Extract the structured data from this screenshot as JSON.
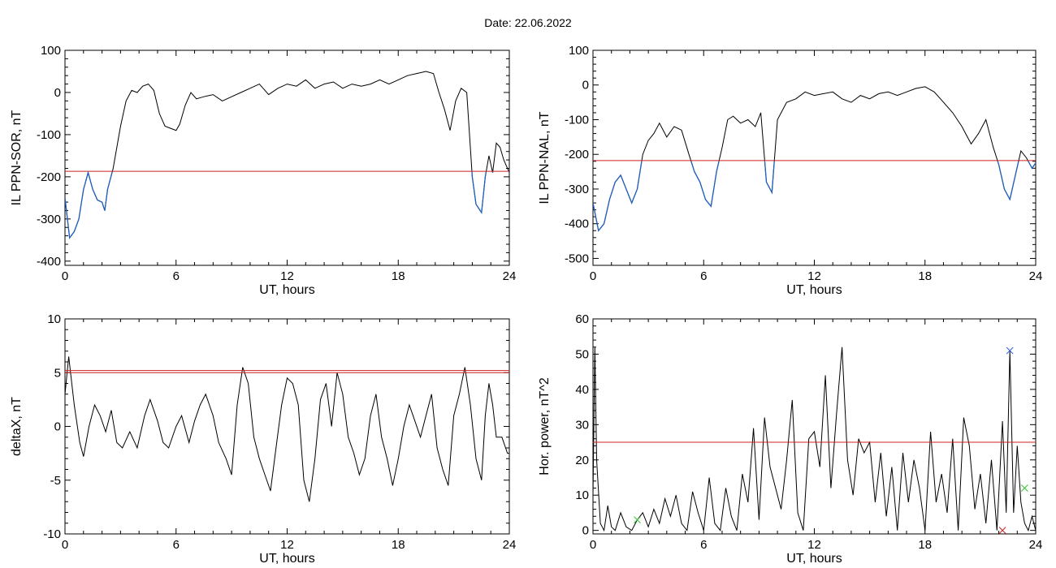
{
  "header": {
    "date_label": "Date:  22.06.2022"
  },
  "chart_data": [
    {
      "type": "line",
      "xlabel": "UT, hours",
      "ylabel": "IL PPN-SOR, nT",
      "xlim": [
        0,
        24
      ],
      "ylim": [
        -410,
        100
      ],
      "xticks": [
        0,
        6,
        12,
        18,
        24
      ],
      "yticks": [
        -400,
        -300,
        -200,
        -100,
        0,
        100
      ],
      "threshold": -187,
      "below_color": "#1f5fbf",
      "line_color": "#000000",
      "threshold_color": "#cc2020",
      "series": [
        {
          "x": [
            0,
            0.25,
            0.5,
            0.75,
            1.0,
            1.25,
            1.5,
            1.75,
            2.0,
            2.15,
            2.3,
            2.6,
            3.0,
            3.3,
            3.6,
            3.9,
            4.2,
            4.5,
            4.8,
            5.1,
            5.4,
            5.7,
            6.0,
            6.2,
            6.5,
            6.8,
            7.1,
            7.5,
            8.0,
            8.5,
            9.0,
            9.5,
            10.0,
            10.5,
            11.0,
            11.5,
            12.0,
            12.5,
            13.0,
            13.5,
            14.0,
            14.5,
            15.0,
            15.5,
            16.0,
            16.5,
            17.0,
            17.5,
            18.0,
            18.5,
            19.0,
            19.5,
            19.9,
            20.2,
            20.5,
            20.8,
            21.1,
            21.4,
            21.7,
            22.0,
            22.2,
            22.5,
            22.7,
            22.9,
            23.1,
            23.3,
            23.5,
            23.7,
            24.0
          ],
          "y": [
            -250,
            -345,
            -330,
            -300,
            -230,
            -190,
            -230,
            -255,
            -260,
            -280,
            -230,
            -180,
            -80,
            -20,
            5,
            0,
            15,
            20,
            5,
            -50,
            -80,
            -85,
            -90,
            -75,
            -30,
            0,
            -15,
            -10,
            -5,
            -20,
            -10,
            0,
            10,
            20,
            -5,
            10,
            20,
            15,
            30,
            10,
            20,
            25,
            10,
            20,
            15,
            20,
            30,
            20,
            30,
            40,
            45,
            50,
            45,
            0,
            -40,
            -90,
            -20,
            10,
            0,
            -200,
            -265,
            -285,
            -200,
            -150,
            -190,
            -120,
            -130,
            -160,
            -190
          ]
        }
      ]
    },
    {
      "type": "line",
      "xlabel": "UT, hours",
      "ylabel": "IL PPN-NAL, nT",
      "xlim": [
        0,
        24
      ],
      "ylim": [
        -520,
        100
      ],
      "xticks": [
        0,
        6,
        12,
        18,
        24
      ],
      "yticks": [
        -500,
        -400,
        -300,
        -200,
        -100,
        0,
        100
      ],
      "threshold": -218,
      "below_color": "#1f5fbf",
      "line_color": "#000000",
      "threshold_color": "#cc2020",
      "series": [
        {
          "x": [
            0,
            0.3,
            0.6,
            0.9,
            1.2,
            1.5,
            1.8,
            2.1,
            2.4,
            2.7,
            3.0,
            3.3,
            3.6,
            4.0,
            4.4,
            4.8,
            5.2,
            5.5,
            5.8,
            6.1,
            6.4,
            6.7,
            7.0,
            7.3,
            7.6,
            8.0,
            8.4,
            8.8,
            9.1,
            9.4,
            9.7,
            10.0,
            10.5,
            11.0,
            11.5,
            12.0,
            12.5,
            13.0,
            13.5,
            14.0,
            14.5,
            15.0,
            15.5,
            16.0,
            16.5,
            17.0,
            17.5,
            18.0,
            18.5,
            19.0,
            19.5,
            20.0,
            20.5,
            20.9,
            21.3,
            21.7,
            22.0,
            22.3,
            22.6,
            22.9,
            23.2,
            23.5,
            23.8,
            24.0
          ],
          "y": [
            -340,
            -420,
            -400,
            -330,
            -280,
            -260,
            -300,
            -340,
            -300,
            -200,
            -160,
            -140,
            -110,
            -150,
            -120,
            -130,
            -200,
            -250,
            -280,
            -330,
            -350,
            -250,
            -180,
            -100,
            -90,
            -110,
            -100,
            -120,
            -80,
            -280,
            -310,
            -100,
            -50,
            -40,
            -20,
            -30,
            -25,
            -20,
            -40,
            -50,
            -30,
            -40,
            -25,
            -20,
            -30,
            -20,
            -10,
            -5,
            -20,
            -50,
            -80,
            -120,
            -170,
            -140,
            -100,
            -180,
            -230,
            -300,
            -330,
            -260,
            -190,
            -210,
            -240,
            -225
          ]
        }
      ]
    },
    {
      "type": "line",
      "xlabel": "UT, hours",
      "ylabel": "deltaX, nT",
      "xlim": [
        0,
        24
      ],
      "ylim": [
        -10,
        10
      ],
      "xticks": [
        0,
        6,
        12,
        18,
        24
      ],
      "yticks": [
        -10,
        -5,
        0,
        5,
        10
      ],
      "thresholds": [
        5.2,
        5.0
      ],
      "line_color": "#000000",
      "threshold_color": "#cc2020",
      "series": [
        {
          "x": [
            0,
            0.2,
            0.5,
            0.8,
            1.0,
            1.3,
            1.6,
            1.9,
            2.2,
            2.5,
            2.8,
            3.1,
            3.5,
            3.9,
            4.3,
            4.6,
            5.0,
            5.3,
            5.6,
            6.0,
            6.3,
            6.7,
            7.0,
            7.3,
            7.6,
            8.0,
            8.3,
            8.7,
            9.0,
            9.3,
            9.6,
            9.9,
            10.2,
            10.5,
            10.8,
            11.1,
            11.4,
            11.7,
            12.0,
            12.3,
            12.6,
            12.9,
            13.2,
            13.5,
            13.8,
            14.1,
            14.4,
            14.7,
            15.0,
            15.3,
            15.6,
            15.9,
            16.2,
            16.5,
            16.8,
            17.1,
            17.4,
            17.7,
            18.0,
            18.3,
            18.6,
            18.9,
            19.2,
            19.5,
            19.8,
            20.1,
            20.4,
            20.7,
            21.0,
            21.3,
            21.6,
            21.9,
            22.2,
            22.5,
            22.7,
            22.9,
            23.1,
            23.3,
            23.6,
            23.9,
            24.0
          ],
          "y": [
            3,
            6.5,
            2,
            -1.5,
            -2.8,
            0,
            2,
            1,
            -0.5,
            1.5,
            -1.5,
            -2,
            -0.5,
            -2,
            1,
            2.5,
            0.5,
            -1.5,
            -2,
            0,
            1,
            -1.5,
            0.5,
            2,
            3,
            1,
            -1.5,
            -3,
            -4.5,
            2,
            5.5,
            4,
            -1,
            -3,
            -4.5,
            -6,
            -2,
            2,
            4.5,
            4,
            2,
            -5,
            -7,
            -3,
            2.5,
            4,
            0,
            5,
            3,
            -1,
            -2.5,
            -4.5,
            -3,
            1,
            3,
            -1,
            -3,
            -5.5,
            -3,
            0,
            2,
            0.5,
            -1,
            1,
            3,
            -2,
            -4,
            -5.5,
            1,
            3,
            5.5,
            2,
            -3,
            -5,
            1,
            4,
            2,
            -1,
            -1,
            -2.5,
            -2.5
          ]
        }
      ]
    },
    {
      "type": "line",
      "xlabel": "UT, hours",
      "ylabel": "Hor. power, nT^2",
      "xlim": [
        0,
        24
      ],
      "ylim": [
        -1,
        60
      ],
      "xticks": [
        0,
        6,
        12,
        18,
        24
      ],
      "yticks": [
        0,
        10,
        20,
        30,
        40,
        50,
        60
      ],
      "threshold": 25,
      "line_color": "#000000",
      "threshold_color": "#cc2020",
      "markers": [
        {
          "x": 2.4,
          "y": 3,
          "color": "#30c030",
          "symbol": "×"
        },
        {
          "x": 22.6,
          "y": 51,
          "color": "#3060d0",
          "symbol": "×"
        },
        {
          "x": 23.4,
          "y": 12,
          "color": "#30c030",
          "symbol": "×"
        },
        {
          "x": 22.2,
          "y": 0,
          "color": "#cc2020",
          "symbol": "×"
        }
      ],
      "series": [
        {
          "x": [
            0,
            0.1,
            0.2,
            0.4,
            0.6,
            0.8,
            1.0,
            1.2,
            1.5,
            1.8,
            2.1,
            2.4,
            2.7,
            3.0,
            3.3,
            3.6,
            3.9,
            4.2,
            4.5,
            4.8,
            5.1,
            5.4,
            5.7,
            6.0,
            6.3,
            6.6,
            6.9,
            7.2,
            7.5,
            7.8,
            8.1,
            8.4,
            8.7,
            9.0,
            9.3,
            9.6,
            9.9,
            10.2,
            10.5,
            10.8,
            11.1,
            11.4,
            11.7,
            12.0,
            12.3,
            12.6,
            12.9,
            13.2,
            13.5,
            13.8,
            14.1,
            14.4,
            14.7,
            15.0,
            15.3,
            15.6,
            15.9,
            16.2,
            16.5,
            16.8,
            17.1,
            17.4,
            17.7,
            18.0,
            18.3,
            18.6,
            18.9,
            19.2,
            19.5,
            19.8,
            20.1,
            20.4,
            20.7,
            21.0,
            21.3,
            21.6,
            21.9,
            22.2,
            22.4,
            22.6,
            22.8,
            23.0,
            23.2,
            23.4,
            23.6,
            23.8,
            24.0
          ],
          "y": [
            10,
            52,
            20,
            2,
            0,
            7,
            1,
            0,
            5,
            1,
            0,
            3,
            5,
            1,
            6,
            2,
            9,
            4,
            10,
            2,
            0,
            11,
            5,
            0,
            15,
            2,
            0,
            12,
            4,
            0,
            16,
            8,
            29,
            3,
            32,
            18,
            12,
            6,
            20,
            37,
            5,
            0,
            26,
            28,
            18,
            44,
            12,
            33,
            52,
            20,
            10,
            26,
            22,
            25,
            8,
            22,
            4,
            18,
            0,
            22,
            8,
            20,
            12,
            0,
            28,
            8,
            16,
            5,
            26,
            0,
            32,
            24,
            6,
            16,
            2,
            20,
            0,
            31,
            5,
            51,
            5,
            24,
            8,
            2,
            0,
            4,
            0
          ]
        }
      ]
    }
  ]
}
